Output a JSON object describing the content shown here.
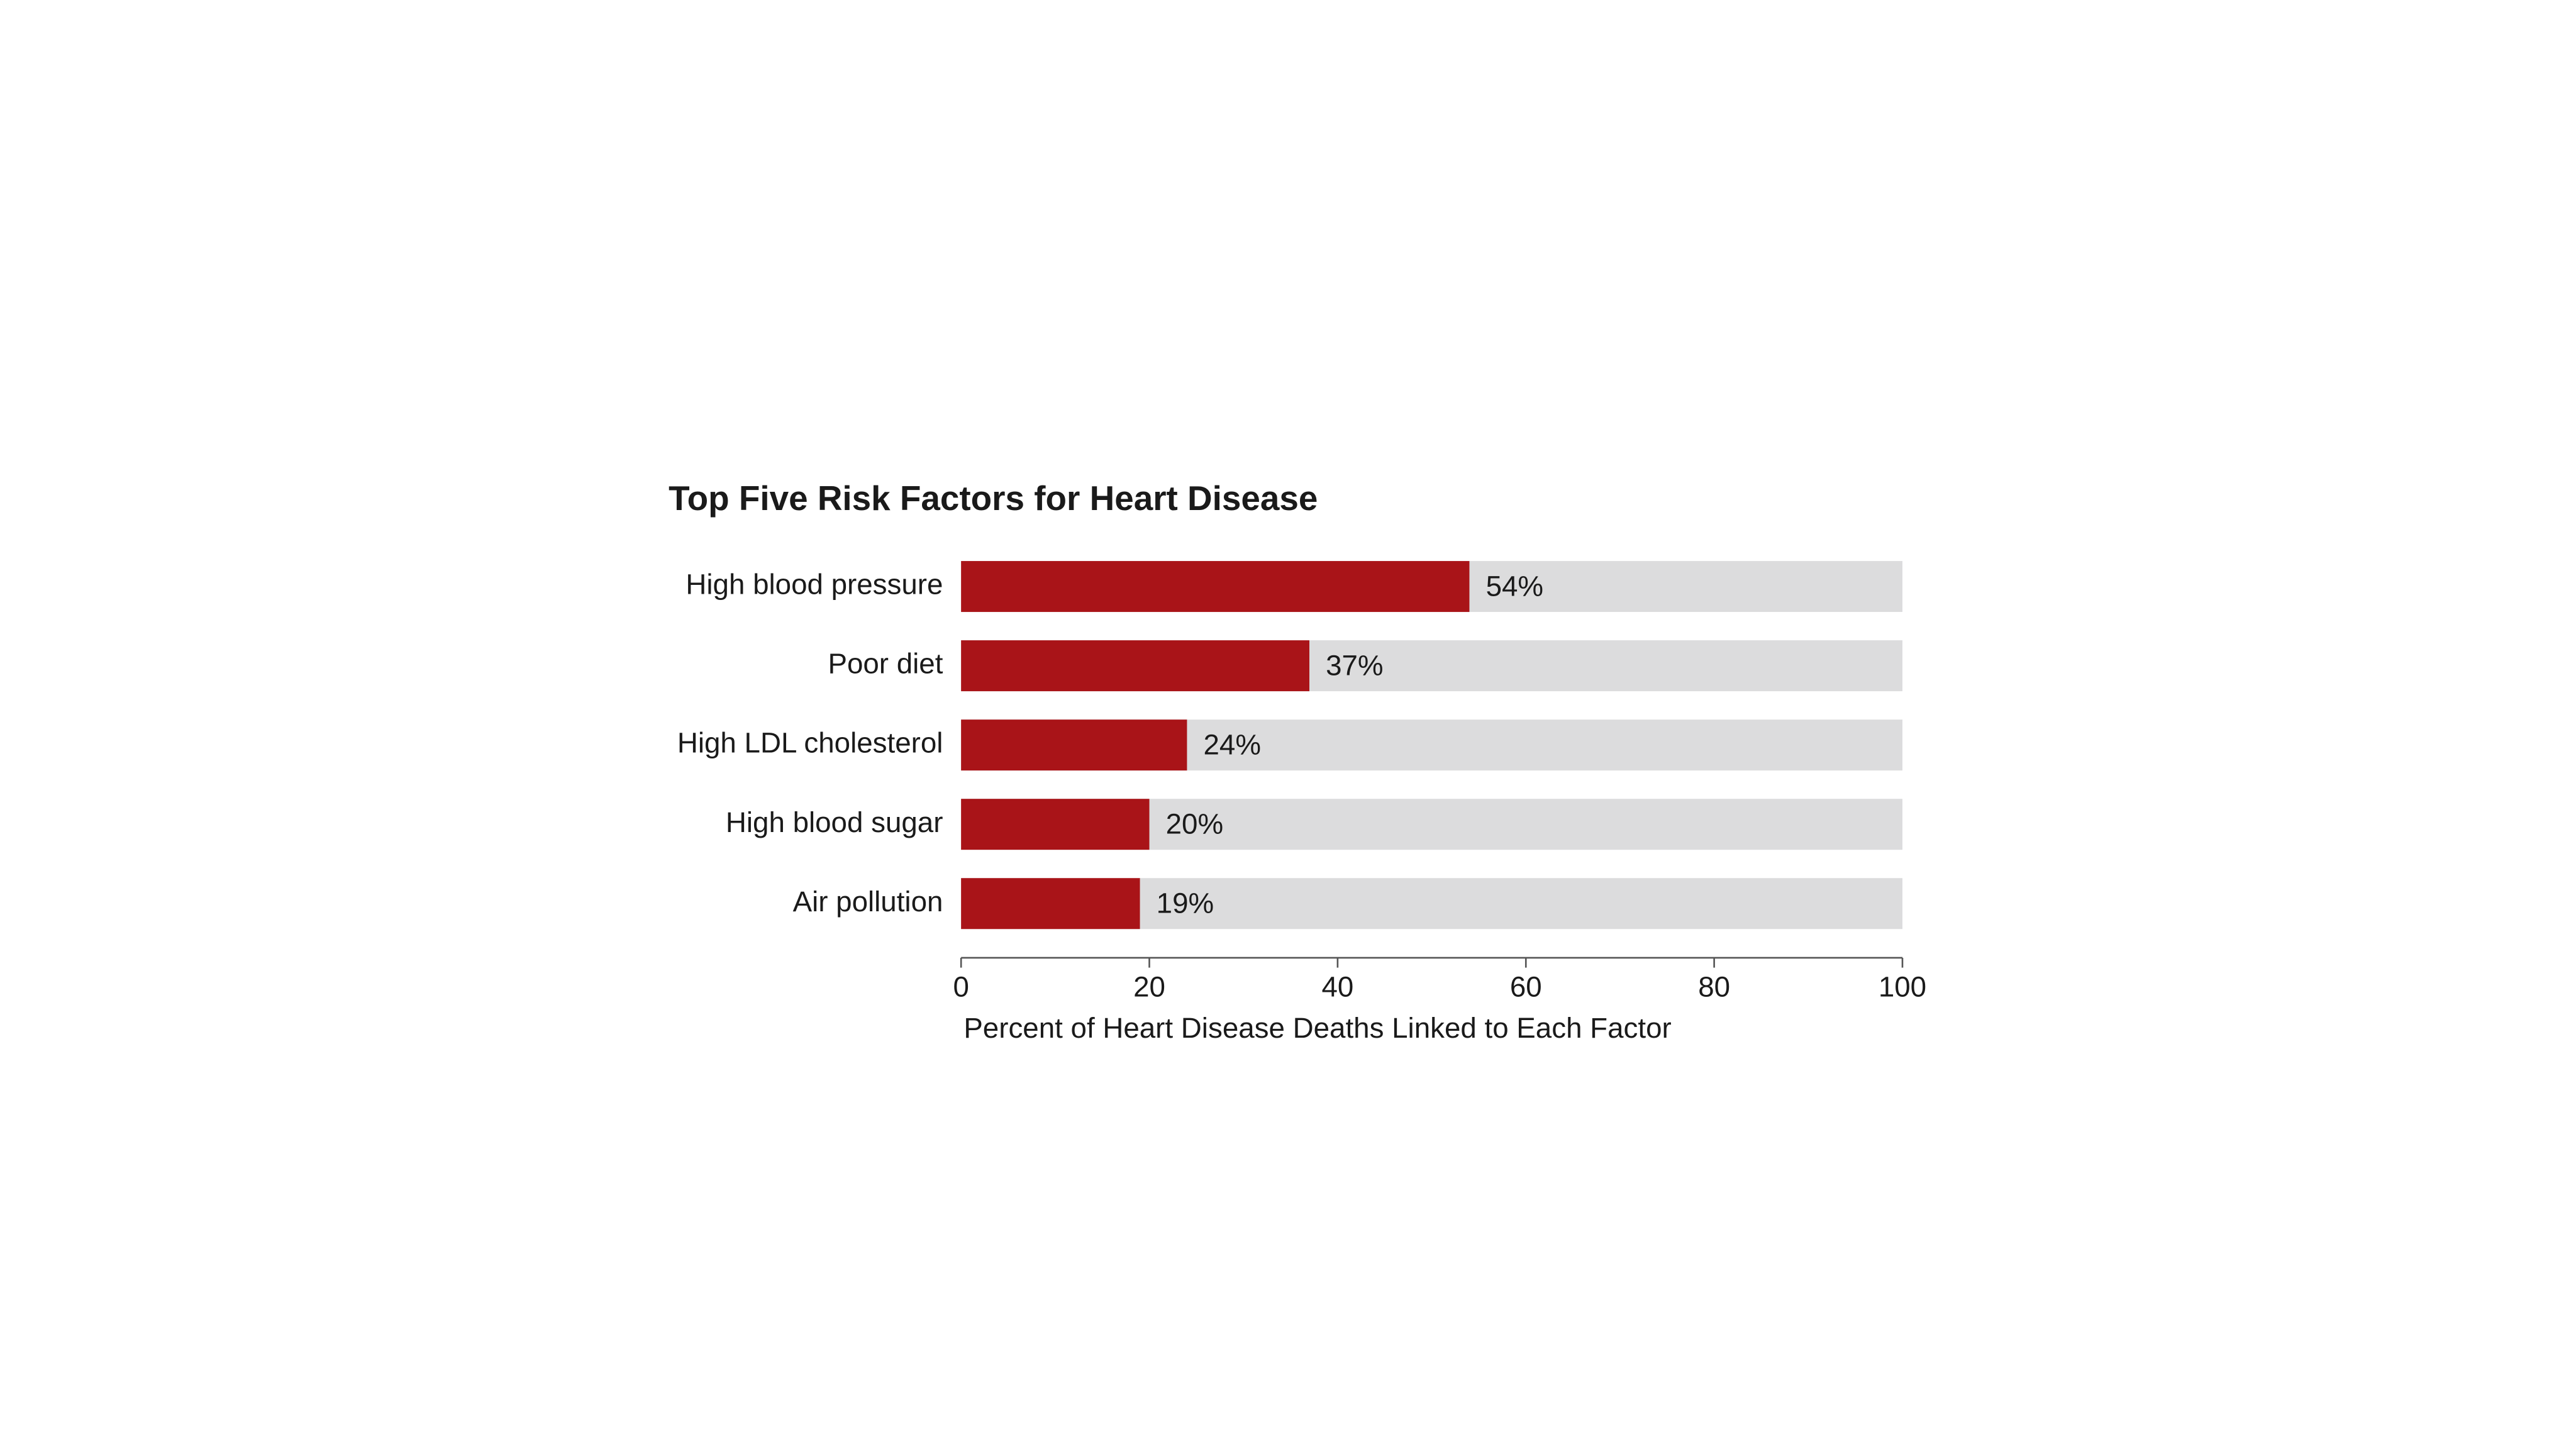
{
  "chart_data": {
    "type": "bar",
    "orientation": "horizontal",
    "title": "Top Five Risk Factors for Heart Disease",
    "x_label": "Percent of Heart Disease Deaths Linked to Each Factor",
    "categories": [
      "High blood pressure",
      "Poor diet",
      "High LDL cholesterol",
      "High blood sugar",
      "Air pollution"
    ],
    "values": [
      54,
      37,
      24,
      20,
      19
    ],
    "value_labels": [
      "54%",
      "37%",
      "24%",
      "20%",
      "19%"
    ],
    "color": "#a91418",
    "track_color": "#dcdcdd",
    "xlim": [
      0,
      100
    ],
    "xticks": [
      0,
      20,
      40,
      60,
      80,
      100
    ],
    "grid": false
  }
}
